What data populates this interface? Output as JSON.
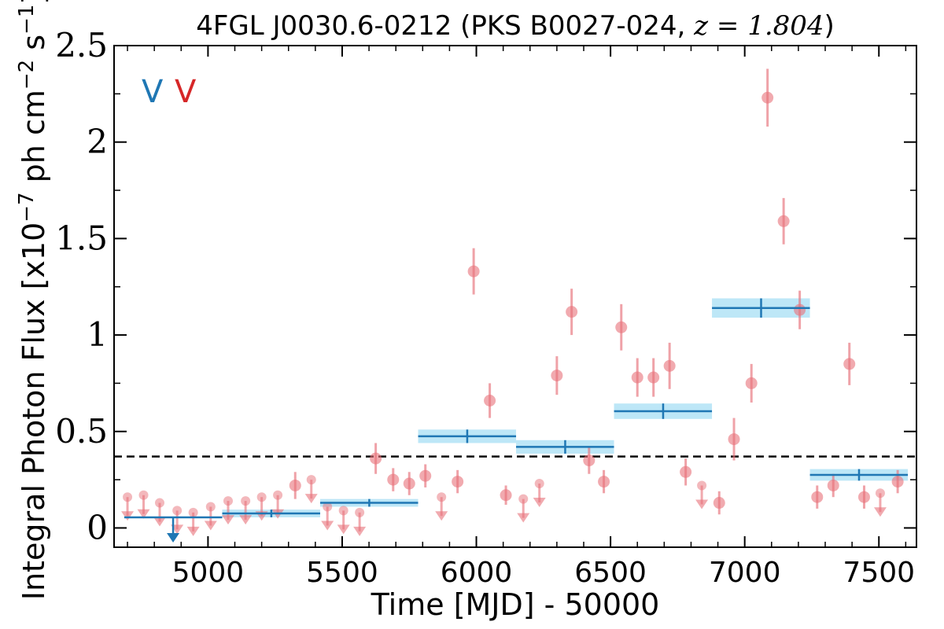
{
  "colors": {
    "monthly": "#e8717a",
    "yearly": "#1f77b4",
    "band": "#bde7f7",
    "threshold": "#000000"
  },
  "chart_data": {
    "type": "scatter",
    "title_main": "4FGL J0030.6-0212 (PKS B0027-024, ",
    "title_math": "z = 1.804",
    "title_end": ")",
    "xlabel": "Time [MJD] - 50000",
    "ylabel_pre": "Integral Photon Flux [x10",
    "ylabel_exp1": "−7",
    "ylabel_mid": " ph cm",
    "ylabel_exp2": "−2",
    "ylabel_mid2": " s",
    "ylabel_exp3": "−1",
    "ylabel_post": "]",
    "xlim": [
      4650,
      7640
    ],
    "ylim": [
      -0.1,
      2.5
    ],
    "x_ticks": [
      5000,
      5500,
      6000,
      6500,
      7000,
      7500
    ],
    "x_tick_labels": [
      "5000",
      "5500",
      "6000",
      "6500",
      "7000",
      "7500"
    ],
    "y_ticks": [
      0,
      0.5,
      1,
      1.5,
      2,
      2.5
    ],
    "y_tick_labels": [
      "0",
      "0.5",
      "1",
      "1.5",
      "2",
      "2.5"
    ],
    "legend_labels": [
      "V",
      "V"
    ],
    "threshold": 0.37,
    "monthly_detections": [
      {
        "x": 5325,
        "y": 0.22,
        "err": 0.07
      },
      {
        "x": 5625,
        "y": 0.36,
        "err": 0.08
      },
      {
        "x": 5690,
        "y": 0.25,
        "err": 0.06
      },
      {
        "x": 5750,
        "y": 0.23,
        "err": 0.06
      },
      {
        "x": 5810,
        "y": 0.27,
        "err": 0.06
      },
      {
        "x": 5930,
        "y": 0.24,
        "err": 0.06
      },
      {
        "x": 5990,
        "y": 1.33,
        "err": 0.12
      },
      {
        "x": 6050,
        "y": 0.66,
        "err": 0.09
      },
      {
        "x": 6110,
        "y": 0.17,
        "err": 0.05
      },
      {
        "x": 6300,
        "y": 0.79,
        "err": 0.1
      },
      {
        "x": 6355,
        "y": 1.12,
        "err": 0.12
      },
      {
        "x": 6420,
        "y": 0.35,
        "err": 0.07
      },
      {
        "x": 6475,
        "y": 0.24,
        "err": 0.06
      },
      {
        "x": 6540,
        "y": 1.04,
        "err": 0.12
      },
      {
        "x": 6600,
        "y": 0.78,
        "err": 0.1
      },
      {
        "x": 6660,
        "y": 0.78,
        "err": 0.1
      },
      {
        "x": 6720,
        "y": 0.84,
        "err": 0.12
      },
      {
        "x": 6780,
        "y": 0.29,
        "err": 0.07
      },
      {
        "x": 6905,
        "y": 0.13,
        "err": 0.06
      },
      {
        "x": 6960,
        "y": 0.46,
        "err": 0.11
      },
      {
        "x": 7025,
        "y": 0.75,
        "err": 0.1
      },
      {
        "x": 7085,
        "y": 2.23,
        "err": 0.15
      },
      {
        "x": 7145,
        "y": 1.59,
        "err": 0.12
      },
      {
        "x": 7205,
        "y": 1.13,
        "err": 0.1
      },
      {
        "x": 7270,
        "y": 0.16,
        "err": 0.06
      },
      {
        "x": 7330,
        "y": 0.22,
        "err": 0.06
      },
      {
        "x": 7390,
        "y": 0.85,
        "err": 0.11
      },
      {
        "x": 7445,
        "y": 0.16,
        "err": 0.06
      },
      {
        "x": 7570,
        "y": 0.24,
        "err": 0.06
      }
    ],
    "monthly_upper_limits": [
      {
        "x": 4700,
        "y": 0.16
      },
      {
        "x": 4760,
        "y": 0.17
      },
      {
        "x": 4820,
        "y": 0.13
      },
      {
        "x": 4885,
        "y": 0.09
      },
      {
        "x": 4945,
        "y": 0.08
      },
      {
        "x": 5010,
        "y": 0.11
      },
      {
        "x": 5075,
        "y": 0.14
      },
      {
        "x": 5140,
        "y": 0.14
      },
      {
        "x": 5200,
        "y": 0.16
      },
      {
        "x": 5260,
        "y": 0.17
      },
      {
        "x": 5385,
        "y": 0.25
      },
      {
        "x": 5445,
        "y": 0.11
      },
      {
        "x": 5505,
        "y": 0.09
      },
      {
        "x": 5565,
        "y": 0.08
      },
      {
        "x": 5870,
        "y": 0.16
      },
      {
        "x": 6175,
        "y": 0.15
      },
      {
        "x": 6235,
        "y": 0.23
      },
      {
        "x": 6840,
        "y": 0.22
      },
      {
        "x": 7505,
        "y": 0.18
      }
    ],
    "yearly_detections": [
      {
        "x0": 5053,
        "x1": 5418,
        "xc": 5236,
        "y": 0.075,
        "err": 0.02
      },
      {
        "x0": 5418,
        "x1": 5783,
        "xc": 5601,
        "y": 0.13,
        "err": 0.02
      },
      {
        "x0": 5783,
        "x1": 6148,
        "xc": 5966,
        "y": 0.475,
        "err": 0.035
      },
      {
        "x0": 6148,
        "x1": 6513,
        "xc": 6331,
        "y": 0.42,
        "err": 0.035
      },
      {
        "x0": 6513,
        "x1": 6878,
        "xc": 6696,
        "y": 0.605,
        "err": 0.04
      },
      {
        "x0": 6878,
        "x1": 7243,
        "xc": 7061,
        "y": 1.14,
        "err": 0.05
      },
      {
        "x0": 7243,
        "x1": 7608,
        "xc": 7426,
        "y": 0.275,
        "err": 0.03
      }
    ],
    "yearly_upper_limits": [
      {
        "x0": 4688,
        "x1": 5053,
        "xc": 4870,
        "y": 0.055
      }
    ]
  }
}
